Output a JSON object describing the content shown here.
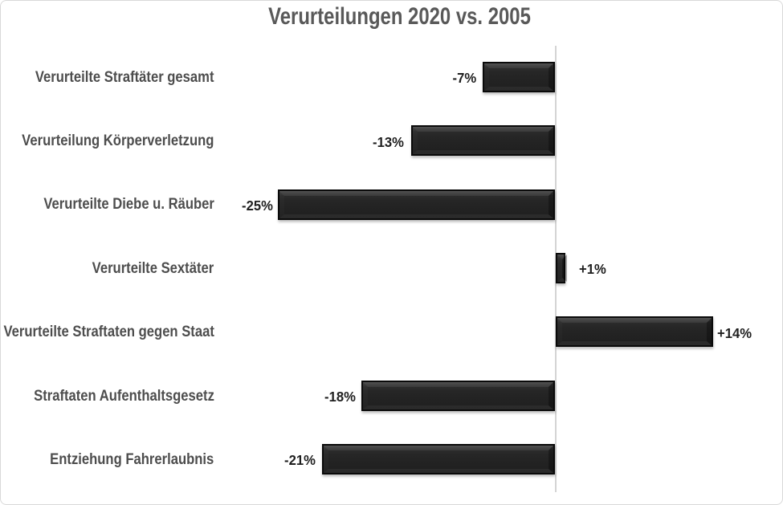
{
  "chart_data": {
    "type": "bar",
    "orientation": "horizontal",
    "title": "Verurteilungen 2020 vs. 2005",
    "categories": [
      "Verurteilte Straftäter gesamt",
      "Verurteilung Körperverletzung",
      "Verurteilte Diebe u. Räuber",
      "Verurteilte Sextäter",
      "Verurteilte Straftaten gegen Staat",
      "Straftaten Aufenthaltsgesetz",
      "Entziehung Fahrerlaubnis"
    ],
    "values": [
      -7,
      -13,
      -25,
      1,
      14,
      -18,
      -21
    ],
    "labels": [
      "-7%",
      "-13%",
      "-25%",
      "+1%",
      "+14%",
      "-18%",
      "-21%"
    ],
    "bar_lengths_pct": [
      -6.55,
      -12.96,
      -24.97,
      0.87,
      14.16,
      -17.41,
      -20.98
    ],
    "xlabel": "",
    "ylabel": "",
    "xlim": [
      -32,
      20.5
    ],
    "axis": {
      "zero_line": true,
      "gridlines": false,
      "value_tick_labels": false
    },
    "legend": "none",
    "data_label_position": "outside-end",
    "colors": {
      "bar_fill": "#232323",
      "bar_border": "#0a0a0a",
      "title": "#595959",
      "category_label": "#4d4d4d",
      "data_label": "#1f1f1f",
      "axis_line": "#d4d4d4",
      "chart_border": "#d9d9d9",
      "background": "#ffffff"
    }
  }
}
